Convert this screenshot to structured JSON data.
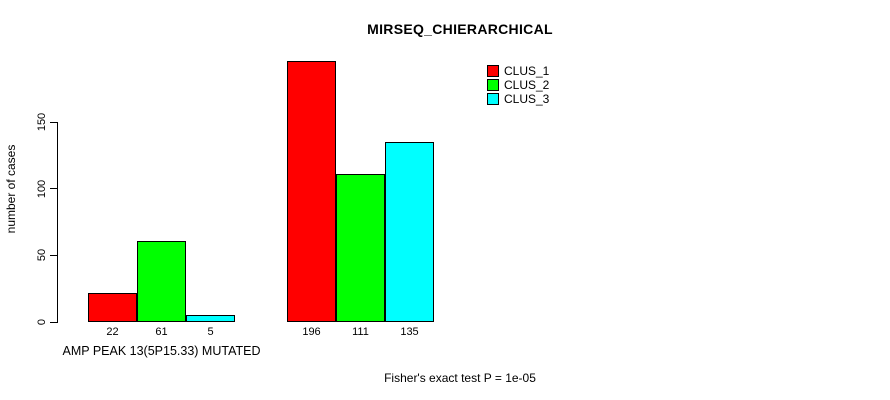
{
  "chart_data": {
    "type": "bar",
    "title": "MIRSEQ_CHIERARCHICAL",
    "xlabel": "",
    "ylabel": "number of cases",
    "ylim": [
      0,
      150
    ],
    "yticks": [
      0,
      50,
      100,
      150
    ],
    "grid": false,
    "categories": [
      "AMP PEAK 13(5P15.33) MUTATED",
      ""
    ],
    "series": [
      {
        "name": "CLUS_1",
        "color": "#ff0000",
        "values": [
          22,
          196
        ]
      },
      {
        "name": "CLUS_2",
        "color": "#00ff00",
        "values": [
          61,
          111
        ]
      },
      {
        "name": "CLUS_3",
        "color": "#00ffff",
        "values": [
          5,
          135
        ]
      }
    ],
    "bar_value_labels_shown": true,
    "legend": {
      "position": "top-right",
      "entries": [
        "CLUS_1",
        "CLUS_2",
        "CLUS_3"
      ]
    },
    "annotation": "Fisher's exact test P = 1e-05",
    "colors": {
      "axis": "#000000",
      "text": "#000000",
      "background": "#ffffff",
      "bar_border": "#000000"
    }
  }
}
